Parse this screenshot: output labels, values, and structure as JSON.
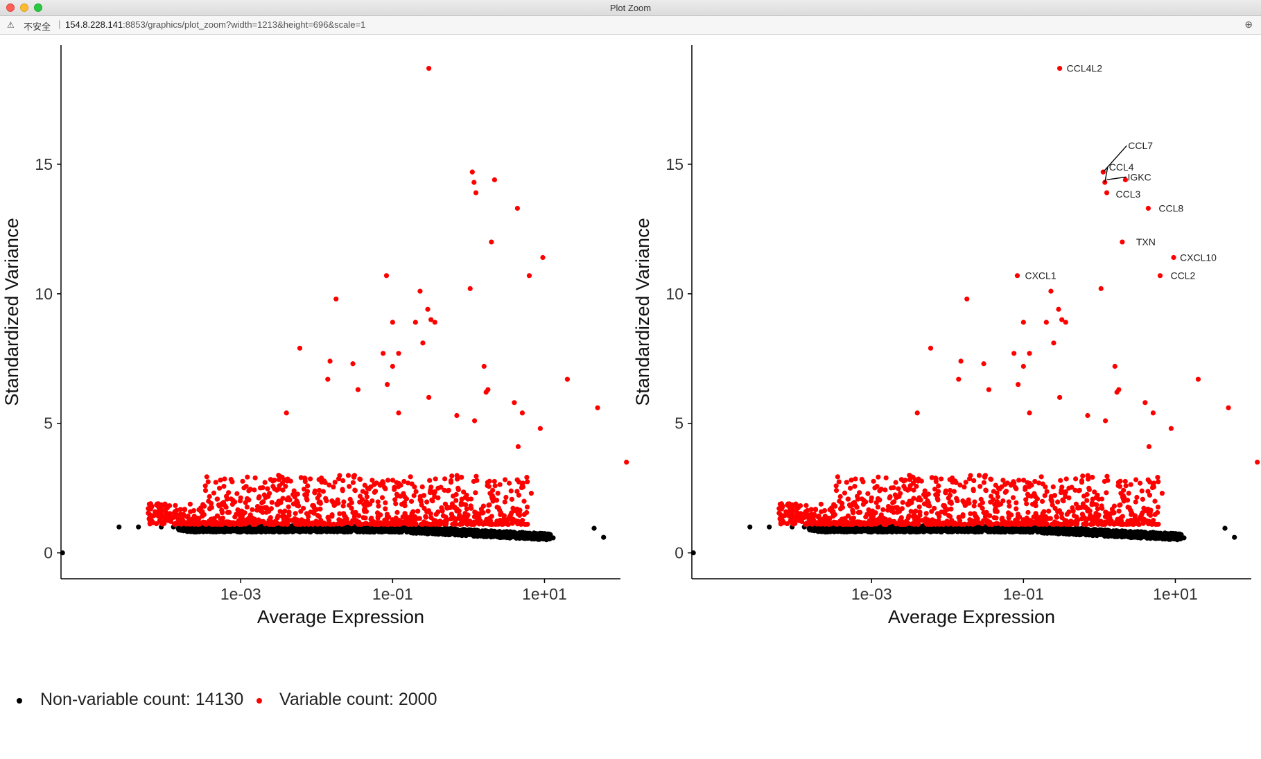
{
  "window": {
    "title": "Plot Zoom"
  },
  "urlbar": {
    "insecure_label": "不安全",
    "separator": "|",
    "host": "154.8.228.141",
    "path": ":8853/graphics/plot_zoom?width=1213&height=696&scale=1"
  },
  "colors": {
    "variable": "#ff0000",
    "nonvariable": "#000000"
  },
  "legend": {
    "nonvariable": "Non-variable count: 14130",
    "variable": "Variable count: 2000"
  },
  "chart_data": [
    {
      "type": "scatter",
      "title": "",
      "xlabel": "Average Expression",
      "ylabel": "Standardized Variance",
      "x_scale": "log10",
      "xlim": [
        4.3e-06,
        100
      ],
      "ylim": [
        -1,
        19.6
      ],
      "x_ticks": [
        0.001,
        0.1,
        10
      ],
      "x_tick_labels": [
        "1e-03",
        "1e-01",
        "1e+01"
      ],
      "y_ticks": [
        0,
        5,
        10,
        15
      ],
      "y_tick_labels": [
        "0",
        "5",
        "10",
        "15"
      ],
      "grid": false,
      "series": [
        {
          "name": "Variable count: 2000",
          "color": "#ff0000",
          "points": [
            [
              0.3,
              18.7
            ],
            [
              1.12,
              14.7
            ],
            [
              1.18,
              14.3
            ],
            [
              1.25,
              13.9
            ],
            [
              2.2,
              14.4
            ],
            [
              4.4,
              13.3
            ],
            [
              2.0,
              12.0
            ],
            [
              9.5,
              11.4
            ],
            [
              1.05,
              10.2
            ],
            [
              6.3,
              10.7
            ],
            [
              0.083,
              10.7
            ],
            [
              0.23,
              10.1
            ],
            [
              0.018,
              9.8
            ],
            [
              0.29,
              9.4
            ],
            [
              0.32,
              9.0
            ],
            [
              0.36,
              8.9
            ],
            [
              0.1,
              8.9
            ],
            [
              0.2,
              8.9
            ],
            [
              0.25,
              8.1
            ],
            [
              0.006,
              7.9
            ],
            [
              0.075,
              7.7
            ],
            [
              0.12,
              7.7
            ],
            [
              0.015,
              7.4
            ],
            [
              0.1,
              7.2
            ],
            [
              0.085,
              6.5
            ],
            [
              1.6,
              7.2
            ],
            [
              1.8,
              6.3
            ],
            [
              1.7,
              6.2
            ],
            [
              20,
              6.7
            ],
            [
              0.03,
              7.3
            ],
            [
              0.035,
              6.3
            ],
            [
              0.014,
              6.7
            ],
            [
              0.004,
              5.4
            ],
            [
              0.12,
              5.4
            ],
            [
              0.3,
              6.0
            ],
            [
              0.7,
              5.3
            ],
            [
              1.2,
              5.1
            ],
            [
              4.0,
              5.8
            ],
            [
              5.1,
              5.4
            ],
            [
              8.8,
              4.8
            ],
            [
              50,
              5.6
            ],
            [
              120,
              3.5
            ],
            [
              4.5,
              4.1
            ],
            [
              6.7,
              2.3
            ]
          ],
          "cloud": {
            "x_range": [
              6e-05,
              6
            ],
            "y_range": [
              1.1,
              3.0
            ],
            "count": 1950
          }
        },
        {
          "name": "Non-variable count: 14130",
          "color": "#000000",
          "points": [
            [
              4.5e-06,
              0
            ],
            [
              2.5e-05,
              1.0
            ],
            [
              4.5e-05,
              1.0
            ],
            [
              9e-05,
              1.0
            ],
            [
              0.00013,
              1.0
            ],
            [
              45,
              0.95
            ],
            [
              60,
              0.6
            ],
            [
              13,
              0.58
            ],
            [
              10.5,
              0.6
            ]
          ],
          "cloud": {
            "x_range": [
              0.00015,
              12
            ],
            "y_range": [
              0.5,
              1.05
            ],
            "count": 14100
          }
        }
      ]
    },
    {
      "type": "scatter",
      "title": "",
      "xlabel": "Average Expression",
      "ylabel": "Standardized Variance",
      "x_scale": "log10",
      "xlim": [
        4.3e-06,
        100
      ],
      "ylim": [
        -1,
        19.6
      ],
      "x_ticks": [
        0.001,
        0.1,
        10
      ],
      "x_tick_labels": [
        "1e-03",
        "1e-01",
        "1e+01"
      ],
      "y_ticks": [
        0,
        5,
        10,
        15
      ],
      "y_tick_labels": [
        "0",
        "5",
        "10",
        "15"
      ],
      "grid": false,
      "series": [
        {
          "name": "Variable count: 2000",
          "color": "#ff0000",
          "points": [
            [
              0.3,
              18.7
            ],
            [
              1.12,
              14.7
            ],
            [
              1.18,
              14.3
            ],
            [
              1.25,
              13.9
            ],
            [
              2.2,
              14.4
            ],
            [
              4.4,
              13.3
            ],
            [
              2.0,
              12.0
            ],
            [
              9.5,
              11.4
            ],
            [
              1.05,
              10.2
            ],
            [
              6.3,
              10.7
            ],
            [
              0.083,
              10.7
            ],
            [
              0.23,
              10.1
            ],
            [
              0.018,
              9.8
            ],
            [
              0.29,
              9.4
            ],
            [
              0.32,
              9.0
            ],
            [
              0.36,
              8.9
            ],
            [
              0.1,
              8.9
            ],
            [
              0.2,
              8.9
            ],
            [
              0.25,
              8.1
            ],
            [
              0.006,
              7.9
            ],
            [
              0.075,
              7.7
            ],
            [
              0.12,
              7.7
            ],
            [
              0.015,
              7.4
            ],
            [
              0.1,
              7.2
            ],
            [
              0.085,
              6.5
            ],
            [
              1.6,
              7.2
            ],
            [
              1.8,
              6.3
            ],
            [
              1.7,
              6.2
            ],
            [
              20,
              6.7
            ],
            [
              0.03,
              7.3
            ],
            [
              0.035,
              6.3
            ],
            [
              0.014,
              6.7
            ],
            [
              0.004,
              5.4
            ],
            [
              0.12,
              5.4
            ],
            [
              0.3,
              6.0
            ],
            [
              0.7,
              5.3
            ],
            [
              1.2,
              5.1
            ],
            [
              4.0,
              5.8
            ],
            [
              5.1,
              5.4
            ],
            [
              8.8,
              4.8
            ],
            [
              50,
              5.6
            ],
            [
              120,
              3.5
            ],
            [
              4.5,
              4.1
            ],
            [
              6.7,
              2.3
            ]
          ],
          "cloud": {
            "x_range": [
              6e-05,
              6
            ],
            "y_range": [
              1.1,
              3.0
            ],
            "count": 1950
          }
        },
        {
          "name": "Non-variable count: 14130",
          "color": "#000000",
          "points": [
            [
              4.5e-06,
              0
            ],
            [
              2.5e-05,
              1.0
            ],
            [
              4.5e-05,
              1.0
            ],
            [
              9e-05,
              1.0
            ],
            [
              0.00013,
              1.0
            ],
            [
              45,
              0.95
            ],
            [
              60,
              0.6
            ],
            [
              13,
              0.58
            ],
            [
              10.5,
              0.6
            ]
          ],
          "cloud": {
            "x_range": [
              0.00015,
              12
            ],
            "y_range": [
              0.5,
              1.05
            ],
            "count": 14100
          }
        }
      ],
      "annotations": [
        {
          "label": "CCL4L2",
          "x": 0.3,
          "y": 18.7
        },
        {
          "label": "CCL7",
          "x": 1.12,
          "y": 14.7,
          "leader": true
        },
        {
          "label": "CCL4",
          "x": 1.18,
          "y": 14.3,
          "leader": true
        },
        {
          "label": "IGKC",
          "x": 1.25,
          "y": 14.4,
          "leader": true
        },
        {
          "label": "CCL3",
          "x": 1.25,
          "y": 13.9
        },
        {
          "label": "CCL8",
          "x": 4.4,
          "y": 13.3
        },
        {
          "label": "TXN",
          "x": 2.0,
          "y": 12.0
        },
        {
          "label": "CXCL10",
          "x": 9.5,
          "y": 11.4
        },
        {
          "label": "CXCL1",
          "x": 0.083,
          "y": 10.7
        },
        {
          "label": "CCL2",
          "x": 6.3,
          "y": 10.7
        }
      ]
    }
  ]
}
